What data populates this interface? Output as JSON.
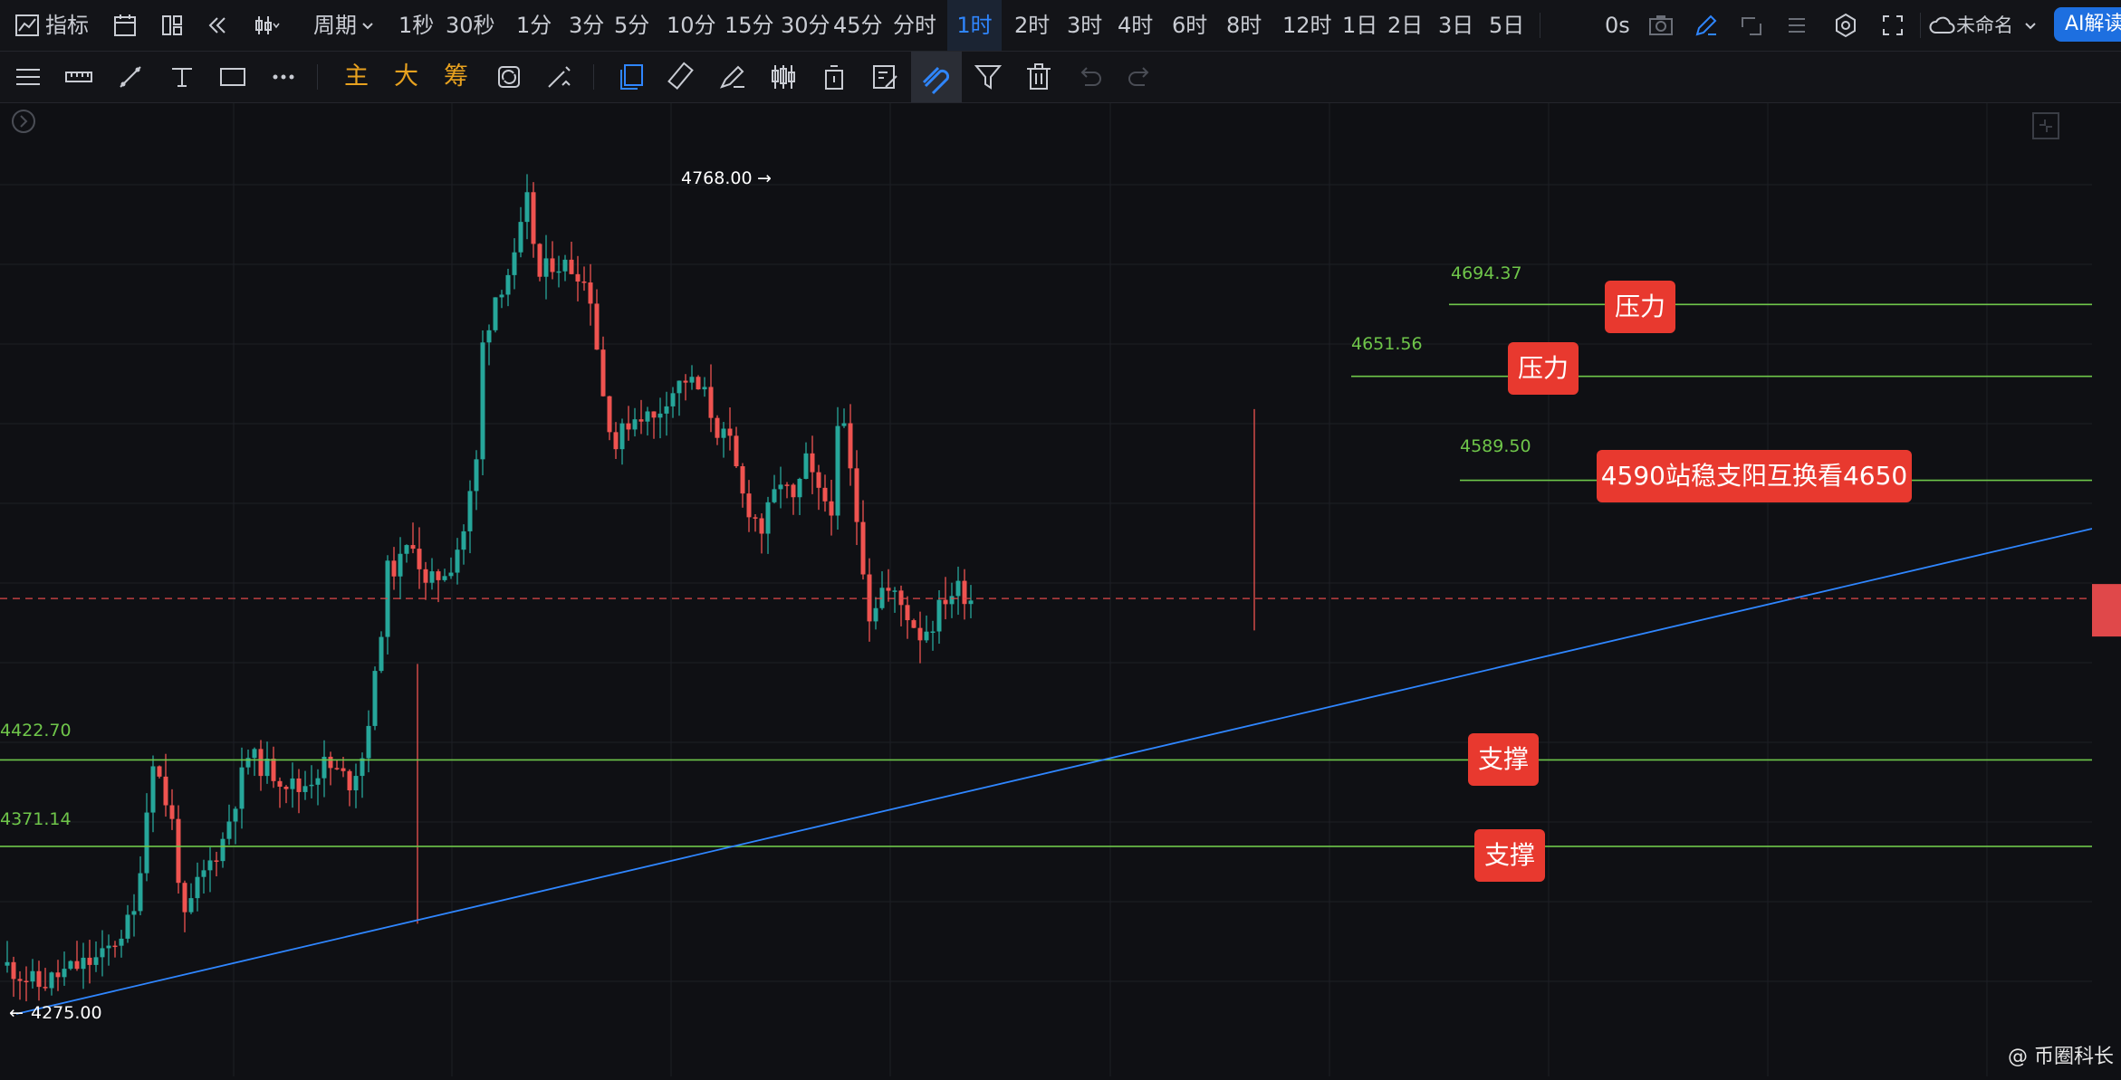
{
  "topbar": {
    "indicators_label": "指标",
    "period_label": "周期",
    "timeframes": [
      "1秒",
      "30秒",
      "1分",
      "3分",
      "5分",
      "10分",
      "15分",
      "30分",
      "45分",
      "分时",
      "1时",
      "2时",
      "3时",
      "4时",
      "6时",
      "8时",
      "12时",
      "1日",
      "2日",
      "3日",
      "5日"
    ],
    "active_timeframe": "1时",
    "countdown": "0s",
    "layout_name": "未命名",
    "ai_button": "AI解读"
  },
  "toolbar2": {
    "main_label": "主",
    "big_label": "大",
    "chips_label": "筹"
  },
  "chart": {
    "high_marker": "4768.00",
    "low_marker": "4275.00",
    "levels": [
      {
        "value": "4694.37",
        "tag": "压力"
      },
      {
        "value": "4651.56",
        "tag": "压力"
      },
      {
        "value": "4589.50",
        "tag": "4590站稳支阳互换看4650"
      },
      {
        "value": "4422.70",
        "tag": "支撑"
      },
      {
        "value": "4371.14",
        "tag": "支撑"
      }
    ],
    "colors": {
      "up": "#26a69a",
      "down": "#ef5350",
      "level": "#6fc64a",
      "trend": "#2f86ff",
      "tag": "#e8392f"
    }
  },
  "watermark": "@ 币圈科长"
}
